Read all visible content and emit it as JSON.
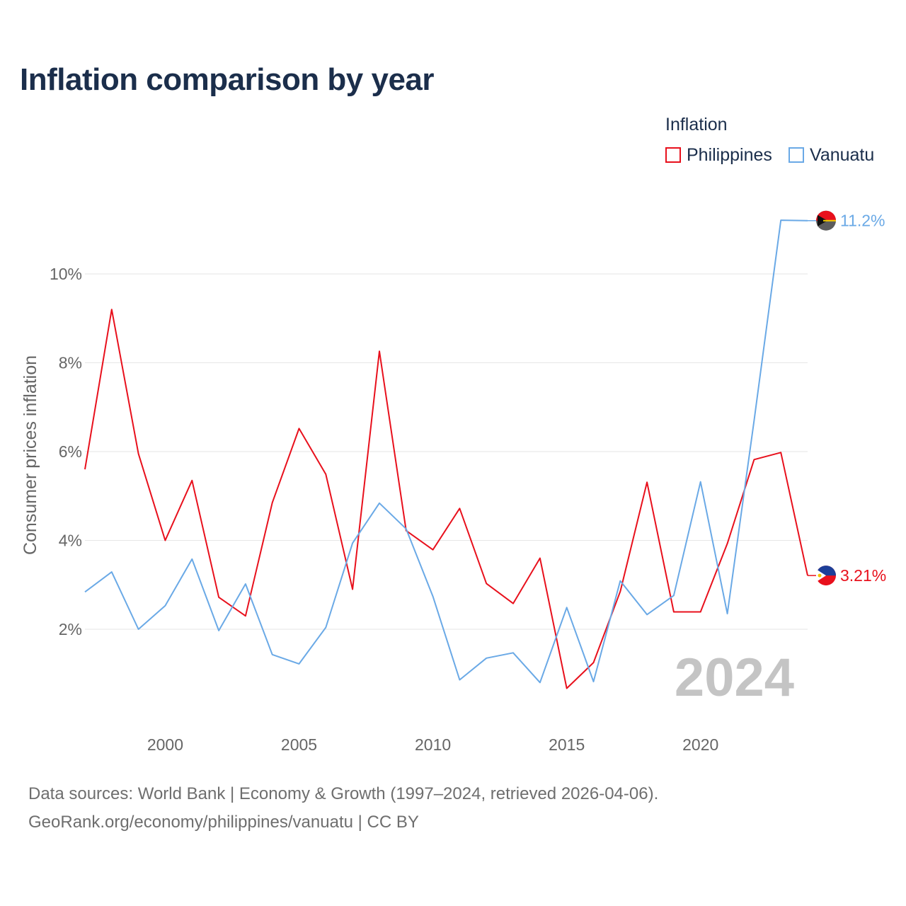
{
  "title": "Inflation comparison by year",
  "legend": {
    "title": "Inflation",
    "items": [
      {
        "label": "Philippines",
        "color": "#e8101c"
      },
      {
        "label": "Vanuatu",
        "color": "#6aa9e6"
      }
    ]
  },
  "sources": {
    "line1": "Data sources: World Bank | Economy & Growth (1997–2024, retrieved 2026-04-06).",
    "line2": "GeoRank.org/economy/philippines/vanuatu | CC BY"
  },
  "chart_data": {
    "type": "line",
    "title": "Inflation comparison by year",
    "xlabel": "",
    "ylabel": "Consumer prices inflation",
    "xlim": [
      1997,
      2024
    ],
    "ylim": [
      0,
      12
    ],
    "x_ticks": [
      2000,
      2005,
      2010,
      2015,
      2020
    ],
    "x_tick_labels": [
      "2000",
      "2005",
      "2010",
      "2015",
      "2020"
    ],
    "y_ticks": [
      2,
      4,
      6,
      8,
      10
    ],
    "y_tick_labels": [
      "2%",
      "4%",
      "6%",
      "8%",
      "10%"
    ],
    "grid": true,
    "legend_position": "top-right",
    "year_label": "2024",
    "x": [
      1997,
      1998,
      1999,
      2000,
      2001,
      2002,
      2003,
      2004,
      2005,
      2006,
      2007,
      2008,
      2009,
      2010,
      2011,
      2012,
      2013,
      2014,
      2015,
      2016,
      2017,
      2018,
      2019,
      2020,
      2021,
      2022,
      2023,
      2024
    ],
    "series": [
      {
        "name": "Philippines",
        "color": "#e8101c",
        "values": [
          5.6,
          9.2,
          5.95,
          4.0,
          5.35,
          2.72,
          2.3,
          4.85,
          6.52,
          5.49,
          2.9,
          8.26,
          4.22,
          3.79,
          4.72,
          3.03,
          2.58,
          3.6,
          0.67,
          1.25,
          2.85,
          5.31,
          2.39,
          2.39,
          3.93,
          5.82,
          5.98,
          3.21
        ],
        "end_label": "3.21%"
      },
      {
        "name": "Vanuatu",
        "color": "#6aa9e6",
        "values": [
          2.84,
          3.29,
          2.0,
          2.53,
          3.58,
          1.97,
          3.02,
          1.43,
          1.22,
          2.04,
          3.94,
          4.84,
          4.26,
          2.74,
          0.86,
          1.35,
          1.47,
          0.8,
          2.49,
          0.82,
          3.09,
          2.33,
          2.76,
          5.32,
          2.35,
          6.7,
          11.21,
          11.2
        ],
        "end_label": "11.2%"
      }
    ],
    "annotations": [
      "11.2%",
      "3.21%"
    ]
  }
}
